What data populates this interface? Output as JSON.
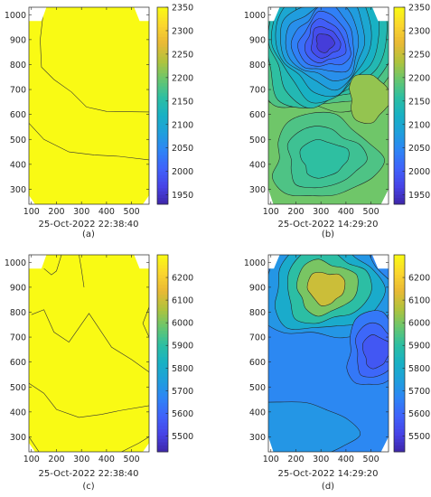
{
  "chart_data": [
    {
      "id": "a",
      "type": "heatmap",
      "subtype": "filled-contour",
      "panel_label": "(a)",
      "xlabel": "25-Oct-2022 22:38:40",
      "xlim": [
        90,
        570
      ],
      "ylim": [
        240,
        1030
      ],
      "xticks": [
        100,
        200,
        300,
        400,
        500
      ],
      "yticks": [
        300,
        400,
        500,
        600,
        700,
        800,
        900,
        1000
      ],
      "colorbar": {
        "min": 1930,
        "max": 2350,
        "ticks": [
          1950,
          2000,
          2050,
          2100,
          2150,
          2200,
          2250,
          2300,
          2350
        ]
      },
      "fill_color": "#f9fa14",
      "contours": [
        [
          [
            150,
            1030
          ],
          [
            135,
            900
          ],
          [
            140,
            790
          ],
          [
            190,
            740
          ],
          [
            260,
            690
          ],
          [
            320,
            630
          ],
          [
            400,
            612
          ],
          [
            570,
            610
          ]
        ],
        [
          [
            90,
            565
          ],
          [
            150,
            500
          ],
          [
            250,
            450
          ],
          [
            350,
            438
          ],
          [
            450,
            432
          ],
          [
            570,
            418
          ]
        ]
      ],
      "clip_corners": {
        "top_left": [
          [
            90,
            975
          ],
          [
            140,
            975
          ],
          [
            160,
            1030
          ],
          [
            90,
            1030
          ]
        ],
        "top_right": [
          [
            510,
            1030
          ],
          [
            532,
            975
          ],
          [
            570,
            975
          ],
          [
            570,
            1030
          ]
        ],
        "bottom_left": [
          [
            90,
            240
          ],
          [
            90,
            275
          ],
          [
            115,
            240
          ]
        ],
        "bottom_right": [
          [
            545,
            240
          ],
          [
            570,
            240
          ],
          [
            570,
            275
          ]
        ]
      }
    },
    {
      "id": "b",
      "type": "heatmap",
      "subtype": "filled-contour",
      "panel_label": "(b)",
      "xlabel": "25-Oct-2022 14:29:20",
      "xlim": [
        90,
        570
      ],
      "ylim": [
        240,
        1030
      ],
      "xticks": [
        100,
        200,
        300,
        400,
        500
      ],
      "yticks": [
        300,
        400,
        500,
        600,
        700,
        800,
        900,
        1000
      ],
      "colorbar": {
        "min": 1930,
        "max": 2350,
        "ticks": [
          1950,
          2000,
          2050,
          2100,
          2150,
          2200,
          2250,
          2300,
          2350
        ]
      },
      "background_value": 2200,
      "peak_centers": [
        {
          "x": 315,
          "y": 885,
          "value": 1950,
          "levels": [
            2200,
            2180,
            2160,
            2140,
            2120,
            2100,
            2080,
            2060,
            2040,
            2020,
            2000,
            1980,
            1960
          ],
          "rx": 300,
          "ry": 320
        },
        {
          "x": 310,
          "y": 420,
          "value": 2150,
          "levels": [
            2180,
            2170,
            2160
          ],
          "rx": 210,
          "ry": 170
        },
        {
          "x": 490,
          "y": 660,
          "value": 2240,
          "levels": [
            2220
          ],
          "rx": 80,
          "ry": 100
        }
      ],
      "clip_corners": {
        "top_left": [
          [
            90,
            975
          ],
          [
            112,
            975
          ],
          [
            135,
            1030
          ],
          [
            90,
            1030
          ]
        ],
        "top_right": [
          [
            505,
            1030
          ],
          [
            528,
            975
          ],
          [
            570,
            975
          ],
          [
            570,
            1030
          ]
        ],
        "bottom_left": [
          [
            90,
            240
          ],
          [
            90,
            300
          ],
          [
            110,
            240
          ]
        ],
        "bottom_right": [
          [
            540,
            240
          ],
          [
            570,
            240
          ],
          [
            570,
            300
          ]
        ]
      }
    },
    {
      "id": "c",
      "type": "heatmap",
      "subtype": "filled-contour",
      "panel_label": "(c)",
      "xlabel": "25-Oct-2022 22:38:40",
      "xlim": [
        90,
        570
      ],
      "ylim": [
        240,
        1030
      ],
      "xticks": [
        100,
        200,
        300,
        400,
        500
      ],
      "yticks": [
        300,
        400,
        500,
        600,
        700,
        800,
        900,
        1000
      ],
      "colorbar": {
        "min": 5430,
        "max": 6300,
        "ticks": [
          5500,
          5600,
          5700,
          5800,
          5900,
          6000,
          6100,
          6200
        ]
      },
      "fill_color": "#f9fa14",
      "contours": [
        [
          [
            100,
            790
          ],
          [
            150,
            810
          ],
          [
            190,
            720
          ],
          [
            250,
            680
          ],
          [
            330,
            795
          ],
          [
            420,
            660
          ],
          [
            500,
            610
          ],
          [
            570,
            560
          ]
        ],
        [
          [
            90,
            515
          ],
          [
            150,
            475
          ],
          [
            200,
            410
          ],
          [
            290,
            378
          ],
          [
            380,
            390
          ],
          [
            450,
            405
          ],
          [
            570,
            425
          ]
        ],
        [
          [
            90,
            300
          ],
          [
            130,
            240
          ]
        ],
        [
          [
            460,
            240
          ],
          [
            530,
            275
          ],
          [
            570,
            300
          ]
        ],
        [
          [
            220,
            1030
          ],
          [
            200,
            965
          ],
          [
            180,
            950
          ],
          [
            150,
            975
          ]
        ],
        [
          [
            290,
            1030
          ],
          [
            300,
            970
          ],
          [
            310,
            900
          ]
        ],
        [
          [
            570,
            700
          ],
          [
            545,
            755
          ],
          [
            570,
            820
          ]
        ]
      ],
      "clip_corners": {
        "top_left": [
          [
            90,
            975
          ],
          [
            140,
            975
          ],
          [
            160,
            1030
          ],
          [
            90,
            1030
          ]
        ],
        "top_right": [
          [
            510,
            1030
          ],
          [
            532,
            975
          ],
          [
            570,
            975
          ],
          [
            570,
            1030
          ]
        ],
        "bottom_left": [
          [
            90,
            240
          ],
          [
            90,
            275
          ],
          [
            115,
            240
          ]
        ],
        "bottom_right": [
          [
            545,
            240
          ],
          [
            570,
            240
          ],
          [
            570,
            275
          ]
        ]
      }
    },
    {
      "id": "d",
      "type": "heatmap",
      "subtype": "filled-contour",
      "panel_label": "(d)",
      "xlabel": "25-Oct-2022 14:29:20",
      "xlim": [
        90,
        570
      ],
      "ylim": [
        240,
        1030
      ],
      "xticks": [
        100,
        200,
        300,
        400,
        500
      ],
      "yticks": [
        300,
        400,
        500,
        600,
        700,
        800,
        900,
        1000
      ],
      "colorbar": {
        "min": 5430,
        "max": 6300,
        "ticks": [
          5500,
          5600,
          5700,
          5800,
          5900,
          6000,
          6100,
          6200
        ]
      },
      "background_value": 5680,
      "peak_centers": [
        {
          "x": 320,
          "y": 895,
          "value": 6150,
          "levels": [
            5720,
            5800,
            5900,
            6000,
            6100
          ],
          "rx": 260,
          "ry": 230
        },
        {
          "x": 520,
          "y": 640,
          "value": 5540,
          "levels": [
            5640,
            5600,
            5560
          ],
          "rx": 120,
          "ry": 150
        },
        {
          "x": 200,
          "y": 310,
          "value": 5760,
          "levels": [
            5720
          ],
          "rx": 220,
          "ry": 130
        }
      ],
      "clip_corners": {
        "top_left": [
          [
            90,
            975
          ],
          [
            112,
            975
          ],
          [
            135,
            1030
          ],
          [
            90,
            1030
          ]
        ],
        "top_right": [
          [
            505,
            1030
          ],
          [
            528,
            975
          ],
          [
            570,
            975
          ],
          [
            570,
            1030
          ]
        ],
        "bottom_left": [
          [
            90,
            240
          ],
          [
            90,
            300
          ],
          [
            110,
            240
          ]
        ],
        "bottom_right": [
          [
            540,
            240
          ],
          [
            570,
            240
          ],
          [
            570,
            300
          ]
        ]
      }
    }
  ],
  "colormap": [
    "#3e26a8",
    "#4743e6",
    "#4062fa",
    "#2e84f6",
    "#1f9fdc",
    "#18b1c3",
    "#2dbfa2",
    "#6ac66d",
    "#b1c33c",
    "#e9b935",
    "#fbd62e",
    "#f9fa14"
  ]
}
